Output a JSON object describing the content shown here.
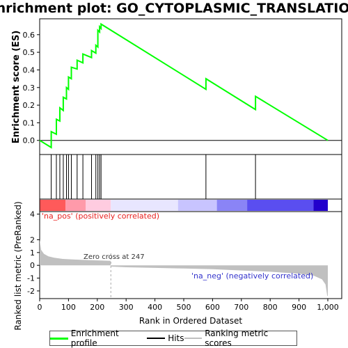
{
  "chart_data": [
    {
      "type": "line",
      "title": "Enrichment plot: GO_CYTOPLASMIC_TRANSLATION",
      "ylabel": "Enrichment score (ES)",
      "xlim": [
        0,
        1000
      ],
      "ylim": [
        -0.08,
        0.69
      ],
      "yticks": [
        0.0,
        0.1,
        0.2,
        0.3,
        0.4,
        0.5,
        0.6
      ],
      "ytick_labels": [
        "0.0",
        "0.1",
        "0.2",
        "0.3",
        "0.4",
        "0.5",
        "0.6"
      ],
      "grid": false,
      "series": [
        {
          "name": "Enrichment profile",
          "color": "#00ff00",
          "x": [
            0,
            40,
            40,
            58,
            58,
            70,
            70,
            82,
            82,
            93,
            93,
            100,
            100,
            110,
            110,
            130,
            130,
            150,
            150,
            180,
            180,
            195,
            195,
            202,
            202,
            208,
            208,
            213,
            213,
            577,
            577,
            749,
            749,
            1000
          ],
          "y": [
            0.0,
            -0.04,
            0.05,
            0.035,
            0.12,
            0.11,
            0.185,
            0.17,
            0.245,
            0.235,
            0.3,
            0.29,
            0.36,
            0.35,
            0.415,
            0.405,
            0.455,
            0.44,
            0.49,
            0.47,
            0.51,
            0.495,
            0.54,
            0.53,
            0.625,
            0.615,
            0.645,
            0.635,
            0.66,
            0.29,
            0.35,
            0.175,
            0.25,
            0.0
          ]
        }
      ]
    },
    {
      "type": "scatter",
      "name": "Hits",
      "hit_positions": [
        40,
        58,
        70,
        82,
        93,
        100,
        110,
        130,
        150,
        180,
        195,
        202,
        208,
        213,
        577,
        749
      ],
      "color": "#000000"
    },
    {
      "type": "heatmap",
      "name": "ranking-color-bar",
      "segments": [
        {
          "from": 0,
          "to": 90,
          "color": "#ff5a5a"
        },
        {
          "from": 90,
          "to": 160,
          "color": "#ff9aaa"
        },
        {
          "from": 160,
          "to": 247,
          "color": "#ffcce0"
        },
        {
          "from": 247,
          "to": 480,
          "color": "#e8e6ff"
        },
        {
          "from": 480,
          "to": 615,
          "color": "#c8c4ff"
        },
        {
          "from": 615,
          "to": 720,
          "color": "#8a84f6"
        },
        {
          "from": 720,
          "to": 950,
          "color": "#5a4ef0"
        },
        {
          "from": 950,
          "to": 1000,
          "color": "#2200cc"
        }
      ]
    },
    {
      "type": "area",
      "name": "Ranking metric scores",
      "xlabel": "Rank in Ordered Dataset",
      "ylabel": "Ranked list metric (PreRanked)",
      "xlim": [
        0,
        1000
      ],
      "ylim": [
        -2.6,
        4.2
      ],
      "xticks": [
        0,
        100,
        200,
        300,
        400,
        500,
        600,
        700,
        800,
        900,
        1000
      ],
      "xtick_labels": [
        "0",
        "100",
        "200",
        "300",
        "400",
        "500",
        "600",
        "700",
        "800",
        "900",
        "1,000"
      ],
      "yticks": [
        -2,
        -1,
        0,
        1,
        2,
        4
      ],
      "ytick_labels": [
        "-2",
        "-1",
        "0",
        "1",
        "2",
        "4"
      ],
      "zero_cross": 247,
      "color": "#c0c0c0",
      "x": [
        0,
        5,
        15,
        30,
        50,
        80,
        120,
        180,
        246,
        247,
        300,
        400,
        500,
        600,
        700,
        800,
        900,
        950,
        980,
        992,
        998,
        1000
      ],
      "y": [
        2.0,
        1.2,
        0.9,
        0.7,
        0.6,
        0.5,
        0.45,
        0.4,
        0.35,
        -0.1,
        -0.15,
        -0.2,
        -0.25,
        -0.3,
        -0.4,
        -0.5,
        -0.65,
        -0.8,
        -1.1,
        -1.5,
        -2.4,
        -2.4
      ]
    }
  ],
  "annotations": {
    "pos_label": "'na_pos' (positively correlated)",
    "neg_label": "'na_neg' (negatively correlated)",
    "zero_cross_label": "Zero cross at 247"
  },
  "legend": {
    "items": [
      {
        "label": "Enrichment profile",
        "color": "#00ff00"
      },
      {
        "label": "Hits",
        "color": "#000000"
      },
      {
        "label": "Ranking metric scores",
        "color": "#c0c0c0"
      }
    ]
  }
}
